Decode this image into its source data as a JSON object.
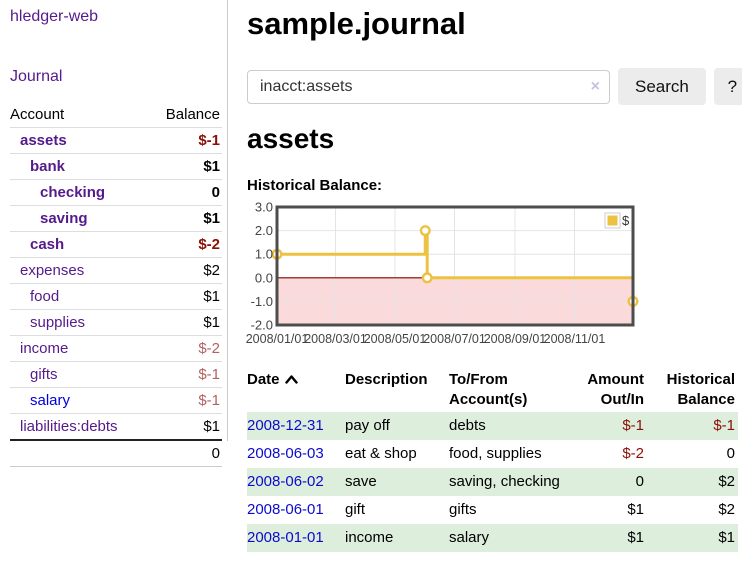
{
  "sidebar": {
    "brand": "hledger-web",
    "journal_label": "Journal",
    "accounts": {
      "headers": [
        "Account",
        "Balance"
      ],
      "rows": [
        {
          "account": "assets",
          "balance": "$-1",
          "depth": 1,
          "matched": true,
          "tone": "neg-strong",
          "link": "visited"
        },
        {
          "account": "bank",
          "balance": "$1",
          "depth": 2,
          "matched": true,
          "tone": "",
          "link": "visited"
        },
        {
          "account": "checking",
          "balance": "0",
          "depth": 3,
          "matched": true,
          "tone": "",
          "link": "visited"
        },
        {
          "account": "saving",
          "balance": "$1",
          "depth": 3,
          "matched": true,
          "tone": "",
          "link": "visited"
        },
        {
          "account": "cash",
          "balance": "$-2",
          "depth": 2,
          "matched": true,
          "tone": "neg-strong",
          "link": "visited"
        },
        {
          "account": "expenses",
          "balance": "$2",
          "depth": 1,
          "matched": false,
          "tone": "",
          "link": "visited"
        },
        {
          "account": "food",
          "balance": "$1",
          "depth": 2,
          "matched": false,
          "tone": "",
          "link": "visited"
        },
        {
          "account": "supplies",
          "balance": "$1",
          "depth": 2,
          "matched": false,
          "tone": "",
          "link": "visited"
        },
        {
          "account": "income",
          "balance": "$-2",
          "depth": 1,
          "matched": false,
          "tone": "neg-weak",
          "link": "visited"
        },
        {
          "account": "gifts",
          "balance": "$-1",
          "depth": 2,
          "matched": false,
          "tone": "neg-weak",
          "link": "visited"
        },
        {
          "account": "salary",
          "balance": "$-1",
          "depth": 2,
          "matched": false,
          "tone": "neg-weak",
          "link": "blue"
        },
        {
          "account": "liabilities:debts",
          "balance": "$1",
          "depth": 1,
          "matched": false,
          "tone": "",
          "link": "visited"
        }
      ],
      "total": "0"
    }
  },
  "main": {
    "title": "sample.journal",
    "search": {
      "value": "inacct:assets",
      "clear_icon": "×",
      "button_label": "Search",
      "help_label": "?"
    },
    "account_heading": "assets",
    "chart_heading": "Historical Balance:",
    "register": {
      "headers": [
        {
          "line1": "Date",
          "line2": "",
          "sortable": true
        },
        {
          "line1": "Description",
          "line2": ""
        },
        {
          "line1": "To/From",
          "line2": "Account(s)"
        },
        {
          "line1": "Amount",
          "line2": "Out/In",
          "numeric": true
        },
        {
          "line1": "Historical",
          "line2": "Balance",
          "numeric": true
        }
      ],
      "rows": [
        {
          "date": "2008-12-31",
          "description": "pay off",
          "accounts": "debts",
          "amount": "$-1",
          "balance": "$-1",
          "amount_neg": true,
          "balance_neg": true,
          "shaded": true
        },
        {
          "date": "2008-06-03",
          "description": "eat & shop",
          "accounts": "food, supplies",
          "amount": "$-2",
          "balance": "0",
          "amount_neg": true,
          "balance_neg": false,
          "shaded": false
        },
        {
          "date": "2008-06-02",
          "description": "save",
          "accounts": "saving, checking",
          "amount": "0",
          "balance": "$2",
          "amount_neg": false,
          "balance_neg": false,
          "shaded": true
        },
        {
          "date": "2008-06-01",
          "description": "gift",
          "accounts": "gifts",
          "amount": "$1",
          "balance": "$2",
          "amount_neg": false,
          "balance_neg": false,
          "shaded": false
        },
        {
          "date": "2008-01-01",
          "description": "income",
          "accounts": "salary",
          "amount": "$1",
          "balance": "$1",
          "amount_neg": false,
          "balance_neg": false,
          "shaded": true
        }
      ]
    }
  },
  "chart_data": {
    "type": "line",
    "style": "step",
    "title": "Historical Balance",
    "legend": {
      "position": "top-right",
      "entries": [
        "$"
      ]
    },
    "series": [
      {
        "name": "$",
        "points": [
          {
            "date": "2008-01-01",
            "value": 1
          },
          {
            "date": "2008-06-01",
            "value": 2
          },
          {
            "date": "2008-06-03",
            "value": 0
          },
          {
            "date": "2008-12-31",
            "value": -1
          }
        ]
      }
    ],
    "x_range": [
      "2008-01-01",
      "2008-12-31"
    ],
    "ylim": [
      -2,
      3
    ],
    "y_ticks": [
      "3.0",
      "2.0",
      "1.0",
      "0.0",
      "-1.0",
      "-2.0"
    ],
    "x_ticks": [
      "2008/01/01",
      "2008/03/01",
      "2008/05/01",
      "2008/07/01",
      "2008/09/01",
      "2008/11/01"
    ],
    "grid": true,
    "colors": {
      "line": "#edc240",
      "marker_fill": "#ffffff",
      "negative_region": "#fadada",
      "zero_line": "#8b0000",
      "gridline": "#e4e4e4",
      "border": "#4d4d4d",
      "axis_text": "#444444"
    }
  }
}
